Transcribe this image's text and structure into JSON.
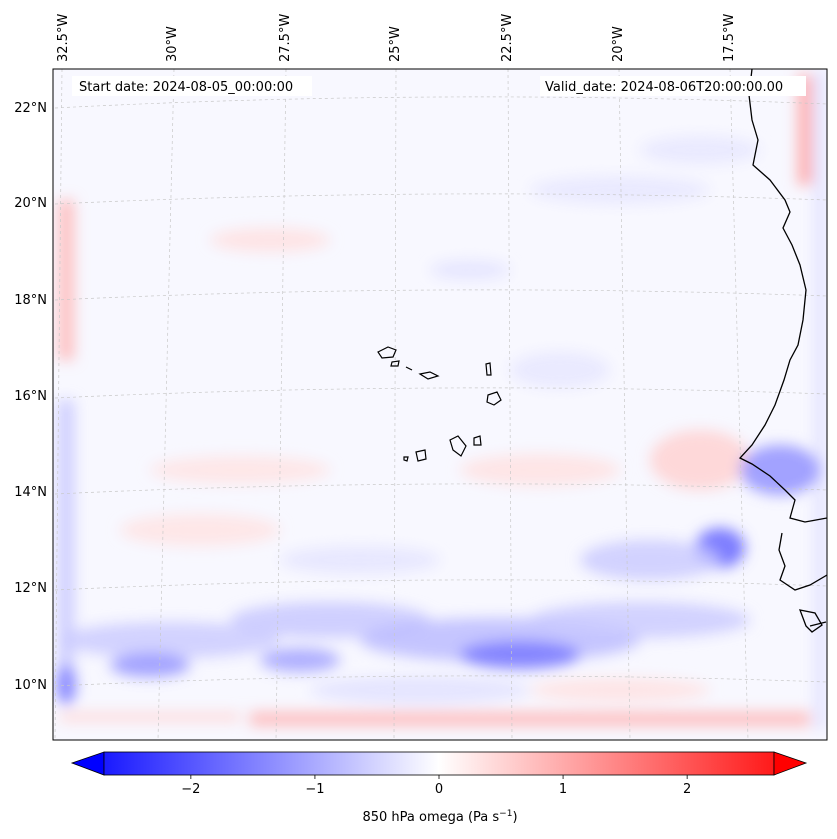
{
  "map": {
    "start_label": "Start date: 2024-08-05_00:00:00",
    "valid_label": "Valid_date: 2024-08-06T20:00:00.00",
    "lon_labels": [
      "32.5°W",
      "30°W",
      "27.5°W",
      "25°W",
      "22.5°W",
      "20°W",
      "17.5°W"
    ],
    "lat_labels": [
      "22°N",
      "20°N",
      "18°N",
      "16°N",
      "14°N",
      "12°N",
      "10°N"
    ],
    "field": "850 hPa omega",
    "colors": {
      "negative": "#0000ff",
      "neutral": "#ffffff",
      "positive": "#ff0000",
      "coast": "#000000",
      "grid": "#bfbfbf"
    }
  },
  "colorbar": {
    "label_main": "850 hPa omega (Pa s",
    "label_exp": "−1",
    "label_end": ")",
    "ticks": [
      "−2",
      "−1",
      "0",
      "1",
      "2"
    ],
    "range": [
      -2.7,
      2.7
    ],
    "tick_values": [
      -2,
      -1,
      0,
      1,
      2
    ]
  }
}
